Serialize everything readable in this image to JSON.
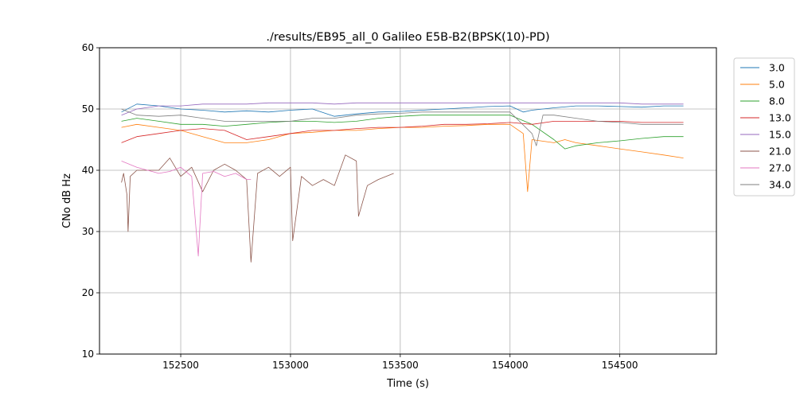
{
  "chart_data": {
    "type": "line",
    "title": "./results/EB95_all_0 Galileo E5B-B2(BPSK(10)-PD)",
    "xlabel": "Time (s)",
    "ylabel": "CNo dB Hz",
    "xlim": [
      152130,
      154940
    ],
    "ylim": [
      10,
      60
    ],
    "xticks": [
      152500,
      153000,
      153500,
      154000,
      154500
    ],
    "yticks": [
      10,
      20,
      30,
      40,
      50,
      60
    ],
    "xtick_labels": [
      "152500",
      "153000",
      "153500",
      "154000",
      "154500"
    ],
    "ytick_labels": [
      "10",
      "20",
      "30",
      "40",
      "50",
      "60"
    ],
    "grid": true,
    "legend_position": "outside-right",
    "series": [
      {
        "name": "3.0",
        "color": "#1f77b4",
        "points": [
          [
            152230,
            49.5
          ],
          [
            152300,
            50.8
          ],
          [
            152400,
            50.5
          ],
          [
            152500,
            50.0
          ],
          [
            152600,
            49.8
          ],
          [
            152700,
            49.5
          ],
          [
            152800,
            49.7
          ],
          [
            152900,
            49.5
          ],
          [
            153000,
            49.8
          ],
          [
            153100,
            50.0
          ],
          [
            153200,
            48.8
          ],
          [
            153300,
            49.2
          ],
          [
            153400,
            49.5
          ],
          [
            153500,
            49.6
          ],
          [
            153600,
            49.8
          ],
          [
            153700,
            50.0
          ],
          [
            153800,
            50.2
          ],
          [
            153900,
            50.4
          ],
          [
            154000,
            50.5
          ],
          [
            154060,
            49.5
          ],
          [
            154100,
            49.8
          ],
          [
            154200,
            50.2
          ],
          [
            154300,
            50.5
          ],
          [
            154400,
            50.5
          ],
          [
            154500,
            50.4
          ],
          [
            154600,
            50.3
          ],
          [
            154700,
            50.5
          ],
          [
            154790,
            50.5
          ]
        ]
      },
      {
        "name": "5.0",
        "color": "#ff7f0e",
        "points": [
          [
            152230,
            47.0
          ],
          [
            152300,
            47.5
          ],
          [
            152400,
            47.0
          ],
          [
            152500,
            46.5
          ],
          [
            152600,
            45.5
          ],
          [
            152700,
            44.5
          ],
          [
            152800,
            44.5
          ],
          [
            152900,
            45.0
          ],
          [
            153000,
            46.0
          ],
          [
            153100,
            46.2
          ],
          [
            153200,
            46.5
          ],
          [
            153300,
            46.5
          ],
          [
            153400,
            46.8
          ],
          [
            153500,
            47.0
          ],
          [
            153600,
            47.0
          ],
          [
            153700,
            47.2
          ],
          [
            153800,
            47.3
          ],
          [
            153900,
            47.5
          ],
          [
            154000,
            47.5
          ],
          [
            154060,
            46.0
          ],
          [
            154080,
            36.5
          ],
          [
            154100,
            45.0
          ],
          [
            154200,
            44.5
          ],
          [
            154250,
            45.0
          ],
          [
            154300,
            44.5
          ],
          [
            154400,
            44.0
          ],
          [
            154500,
            43.5
          ],
          [
            154600,
            43.0
          ],
          [
            154700,
            42.5
          ],
          [
            154790,
            42.0
          ]
        ]
      },
      {
        "name": "8.0",
        "color": "#2ca02c",
        "points": [
          [
            152230,
            48.0
          ],
          [
            152300,
            48.5
          ],
          [
            152400,
            48.0
          ],
          [
            152500,
            47.5
          ],
          [
            152600,
            47.5
          ],
          [
            152700,
            47.2
          ],
          [
            152800,
            47.5
          ],
          [
            152900,
            47.8
          ],
          [
            153000,
            48.0
          ],
          [
            153100,
            48.0
          ],
          [
            153200,
            47.8
          ],
          [
            153300,
            48.0
          ],
          [
            153400,
            48.5
          ],
          [
            153500,
            48.8
          ],
          [
            153600,
            49.0
          ],
          [
            153700,
            49.0
          ],
          [
            153800,
            49.0
          ],
          [
            153900,
            49.0
          ],
          [
            154000,
            49.0
          ],
          [
            154100,
            47.5
          ],
          [
            154200,
            45.0
          ],
          [
            154250,
            43.5
          ],
          [
            154300,
            44.0
          ],
          [
            154400,
            44.5
          ],
          [
            154500,
            44.8
          ],
          [
            154600,
            45.2
          ],
          [
            154700,
            45.5
          ],
          [
            154790,
            45.5
          ]
        ]
      },
      {
        "name": "13.0",
        "color": "#d62728",
        "points": [
          [
            152230,
            44.5
          ],
          [
            152300,
            45.5
          ],
          [
            152400,
            46.0
          ],
          [
            152500,
            46.5
          ],
          [
            152600,
            46.8
          ],
          [
            152700,
            46.5
          ],
          [
            152800,
            45.0
          ],
          [
            152900,
            45.5
          ],
          [
            153000,
            46.0
          ],
          [
            153100,
            46.5
          ],
          [
            153200,
            46.5
          ],
          [
            153300,
            46.8
          ],
          [
            153400,
            47.0
          ],
          [
            153500,
            47.0
          ],
          [
            153600,
            47.2
          ],
          [
            153700,
            47.5
          ],
          [
            153800,
            47.5
          ],
          [
            153900,
            47.6
          ],
          [
            154000,
            47.8
          ],
          [
            154100,
            47.5
          ],
          [
            154200,
            48.0
          ],
          [
            154300,
            48.0
          ],
          [
            154400,
            48.0
          ],
          [
            154500,
            48.0
          ],
          [
            154600,
            47.8
          ],
          [
            154700,
            47.8
          ],
          [
            154790,
            47.8
          ]
        ]
      },
      {
        "name": "15.0",
        "color": "#9467bd",
        "points": [
          [
            152230,
            49.0
          ],
          [
            152300,
            50.0
          ],
          [
            152400,
            50.5
          ],
          [
            152500,
            50.5
          ],
          [
            152600,
            50.8
          ],
          [
            152700,
            50.8
          ],
          [
            152800,
            50.8
          ],
          [
            152900,
            51.0
          ],
          [
            153000,
            51.0
          ],
          [
            153100,
            51.0
          ],
          [
            153200,
            50.8
          ],
          [
            153300,
            51.0
          ],
          [
            153400,
            51.0
          ],
          [
            153500,
            51.0
          ],
          [
            153600,
            51.0
          ],
          [
            153700,
            51.0
          ],
          [
            153800,
            51.0
          ],
          [
            153900,
            51.0
          ],
          [
            154000,
            51.0
          ],
          [
            154100,
            51.0
          ],
          [
            154200,
            51.0
          ],
          [
            154300,
            51.0
          ],
          [
            154400,
            51.0
          ],
          [
            154500,
            51.0
          ],
          [
            154600,
            50.8
          ],
          [
            154700,
            50.8
          ],
          [
            154790,
            50.8
          ]
        ]
      },
      {
        "name": "21.0",
        "color": "#8c564b",
        "points": [
          [
            152230,
            38.0
          ],
          [
            152240,
            39.5
          ],
          [
            152255,
            36.0
          ],
          [
            152260,
            30.0
          ],
          [
            152270,
            39.0
          ],
          [
            152300,
            40.0
          ],
          [
            152400,
            40.0
          ],
          [
            152450,
            42.0
          ],
          [
            152500,
            39.0
          ],
          [
            152550,
            40.5
          ],
          [
            152600,
            36.5
          ],
          [
            152650,
            40.0
          ],
          [
            152700,
            41.0
          ],
          [
            152750,
            40.0
          ],
          [
            152800,
            38.5
          ],
          [
            152820,
            25.0
          ],
          [
            152850,
            39.5
          ],
          [
            152900,
            40.5
          ],
          [
            152950,
            39.0
          ],
          [
            153000,
            40.5
          ],
          [
            153010,
            28.5
          ],
          [
            153050,
            39.0
          ],
          [
            153100,
            37.5
          ],
          [
            153150,
            38.5
          ],
          [
            153200,
            37.5
          ],
          [
            153250,
            42.5
          ],
          [
            153300,
            41.5
          ],
          [
            153310,
            32.5
          ],
          [
            153350,
            37.5
          ],
          [
            153400,
            38.5
          ],
          [
            153470,
            39.5
          ]
        ]
      },
      {
        "name": "27.0",
        "color": "#e377c2",
        "points": [
          [
            152230,
            41.5
          ],
          [
            152300,
            40.5
          ],
          [
            152400,
            39.5
          ],
          [
            152450,
            39.8
          ],
          [
            152500,
            40.5
          ],
          [
            152550,
            39.0
          ],
          [
            152580,
            26.0
          ],
          [
            152600,
            39.5
          ],
          [
            152650,
            39.8
          ],
          [
            152700,
            39.0
          ],
          [
            152750,
            39.5
          ],
          [
            152800,
            38.5
          ],
          [
            152820,
            38.5
          ]
        ]
      },
      {
        "name": "34.0",
        "color": "#7f7f7f",
        "points": [
          [
            152230,
            50.0
          ],
          [
            152300,
            49.0
          ],
          [
            152400,
            48.8
          ],
          [
            152500,
            49.0
          ],
          [
            152600,
            48.5
          ],
          [
            152700,
            48.0
          ],
          [
            152800,
            48.0
          ],
          [
            152900,
            48.0
          ],
          [
            153000,
            48.0
          ],
          [
            153100,
            48.5
          ],
          [
            153200,
            48.5
          ],
          [
            153300,
            49.0
          ],
          [
            153400,
            49.2
          ],
          [
            153500,
            49.3
          ],
          [
            153600,
            49.5
          ],
          [
            153700,
            49.5
          ],
          [
            153800,
            49.5
          ],
          [
            153900,
            49.5
          ],
          [
            154000,
            49.5
          ],
          [
            154100,
            46.0
          ],
          [
            154120,
            44.0
          ],
          [
            154150,
            49.0
          ],
          [
            154200,
            49.0
          ],
          [
            154300,
            48.5
          ],
          [
            154400,
            48.0
          ],
          [
            154500,
            47.8
          ],
          [
            154600,
            47.5
          ],
          [
            154700,
            47.5
          ],
          [
            154790,
            47.5
          ]
        ]
      }
    ]
  }
}
